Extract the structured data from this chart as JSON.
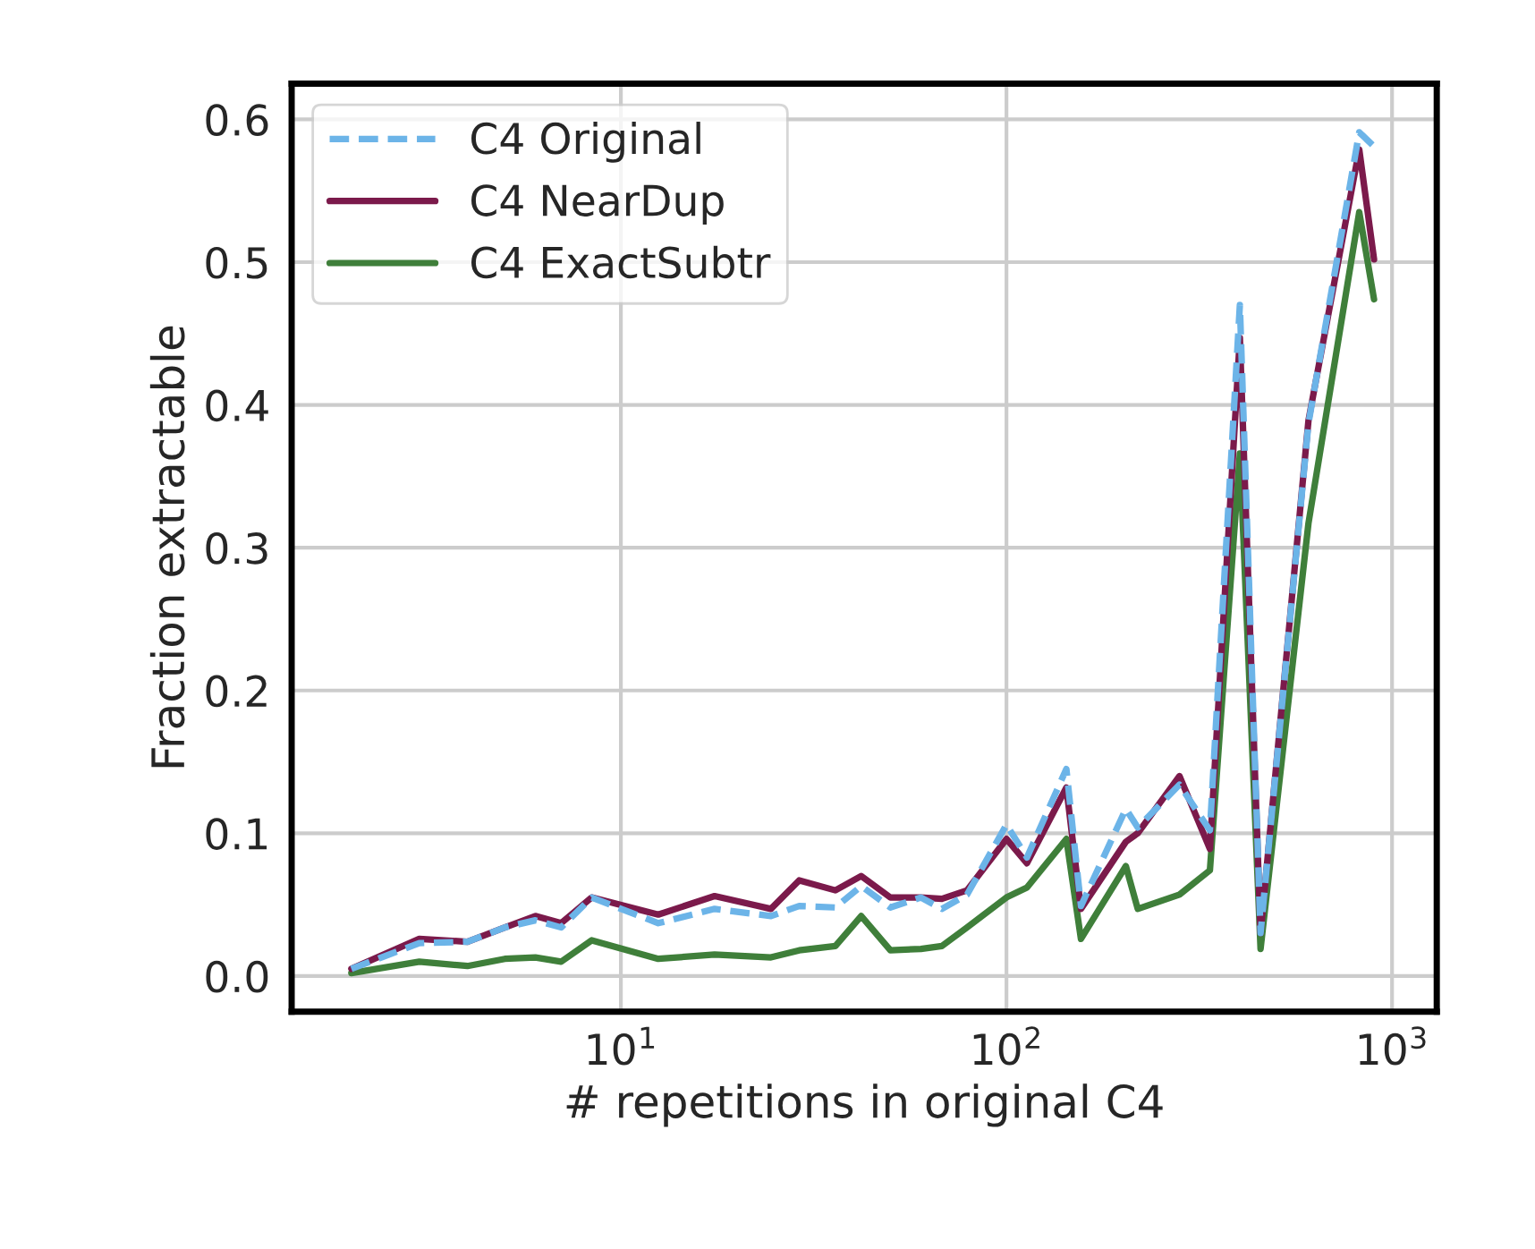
{
  "chart_data": {
    "type": "line",
    "xlabel": "# repetitions in original C4",
    "ylabel": "Fraction extractable",
    "x": [
      2,
      3,
      4,
      5,
      6,
      7,
      8.4,
      12.5,
      17.5,
      24.5,
      29,
      36,
      42,
      50,
      60,
      68,
      79,
      100,
      113,
      143,
      156,
      204,
      219,
      281,
      337,
      403,
      456,
      607,
      822,
      898
    ],
    "series": [
      {
        "name": "C4 Original",
        "color": "#6cb4e8",
        "line_style": "dashed",
        "values": [
          0.005,
          0.023,
          0.024,
          0.034,
          0.039,
          0.034,
          0.055,
          0.037,
          0.047,
          0.042,
          0.049,
          0.048,
          0.063,
          0.048,
          0.055,
          0.047,
          0.057,
          0.106,
          0.083,
          0.145,
          0.049,
          0.117,
          0.104,
          0.134,
          0.102,
          0.47,
          0.03,
          0.387,
          0.591,
          0.581
        ]
      },
      {
        "name": "C4 NearDup",
        "color": "#7b1a4b",
        "line_style": "solid",
        "values": [
          0.005,
          0.026,
          0.024,
          0.034,
          0.042,
          0.037,
          0.055,
          0.043,
          0.056,
          0.047,
          0.067,
          0.06,
          0.07,
          0.055,
          0.055,
          0.054,
          0.06,
          0.096,
          0.079,
          0.132,
          0.047,
          0.094,
          0.1,
          0.14,
          0.089,
          0.447,
          0.03,
          0.389,
          0.579,
          0.502
        ]
      },
      {
        "name": "C4 ExactSubtr",
        "color": "#3f7f3a",
        "line_style": "solid",
        "values": [
          0.002,
          0.01,
          0.007,
          0.012,
          0.013,
          0.01,
          0.025,
          0.012,
          0.015,
          0.013,
          0.018,
          0.021,
          0.042,
          0.018,
          0.019,
          0.021,
          0.034,
          0.055,
          0.062,
          0.096,
          0.026,
          0.077,
          0.047,
          0.057,
          0.074,
          0.366,
          0.019,
          0.317,
          0.535,
          0.474
        ]
      }
    ],
    "log": "x",
    "xlim": [
      1.4,
      1306
    ],
    "xticks": [
      {
        "value": 10,
        "label": "10$^{1}$"
      },
      {
        "value": 100,
        "label": "10$^{2}$"
      },
      {
        "value": 1000,
        "label": "10$^{3}$"
      }
    ],
    "ylim": [
      -0.025,
      0.625
    ],
    "yticks": [
      {
        "value": 0,
        "label": "0.0"
      },
      0.1,
      0.2,
      0.3,
      0.4,
      0.5,
      0.6
    ],
    "grid": true,
    "legend": "top left"
  }
}
